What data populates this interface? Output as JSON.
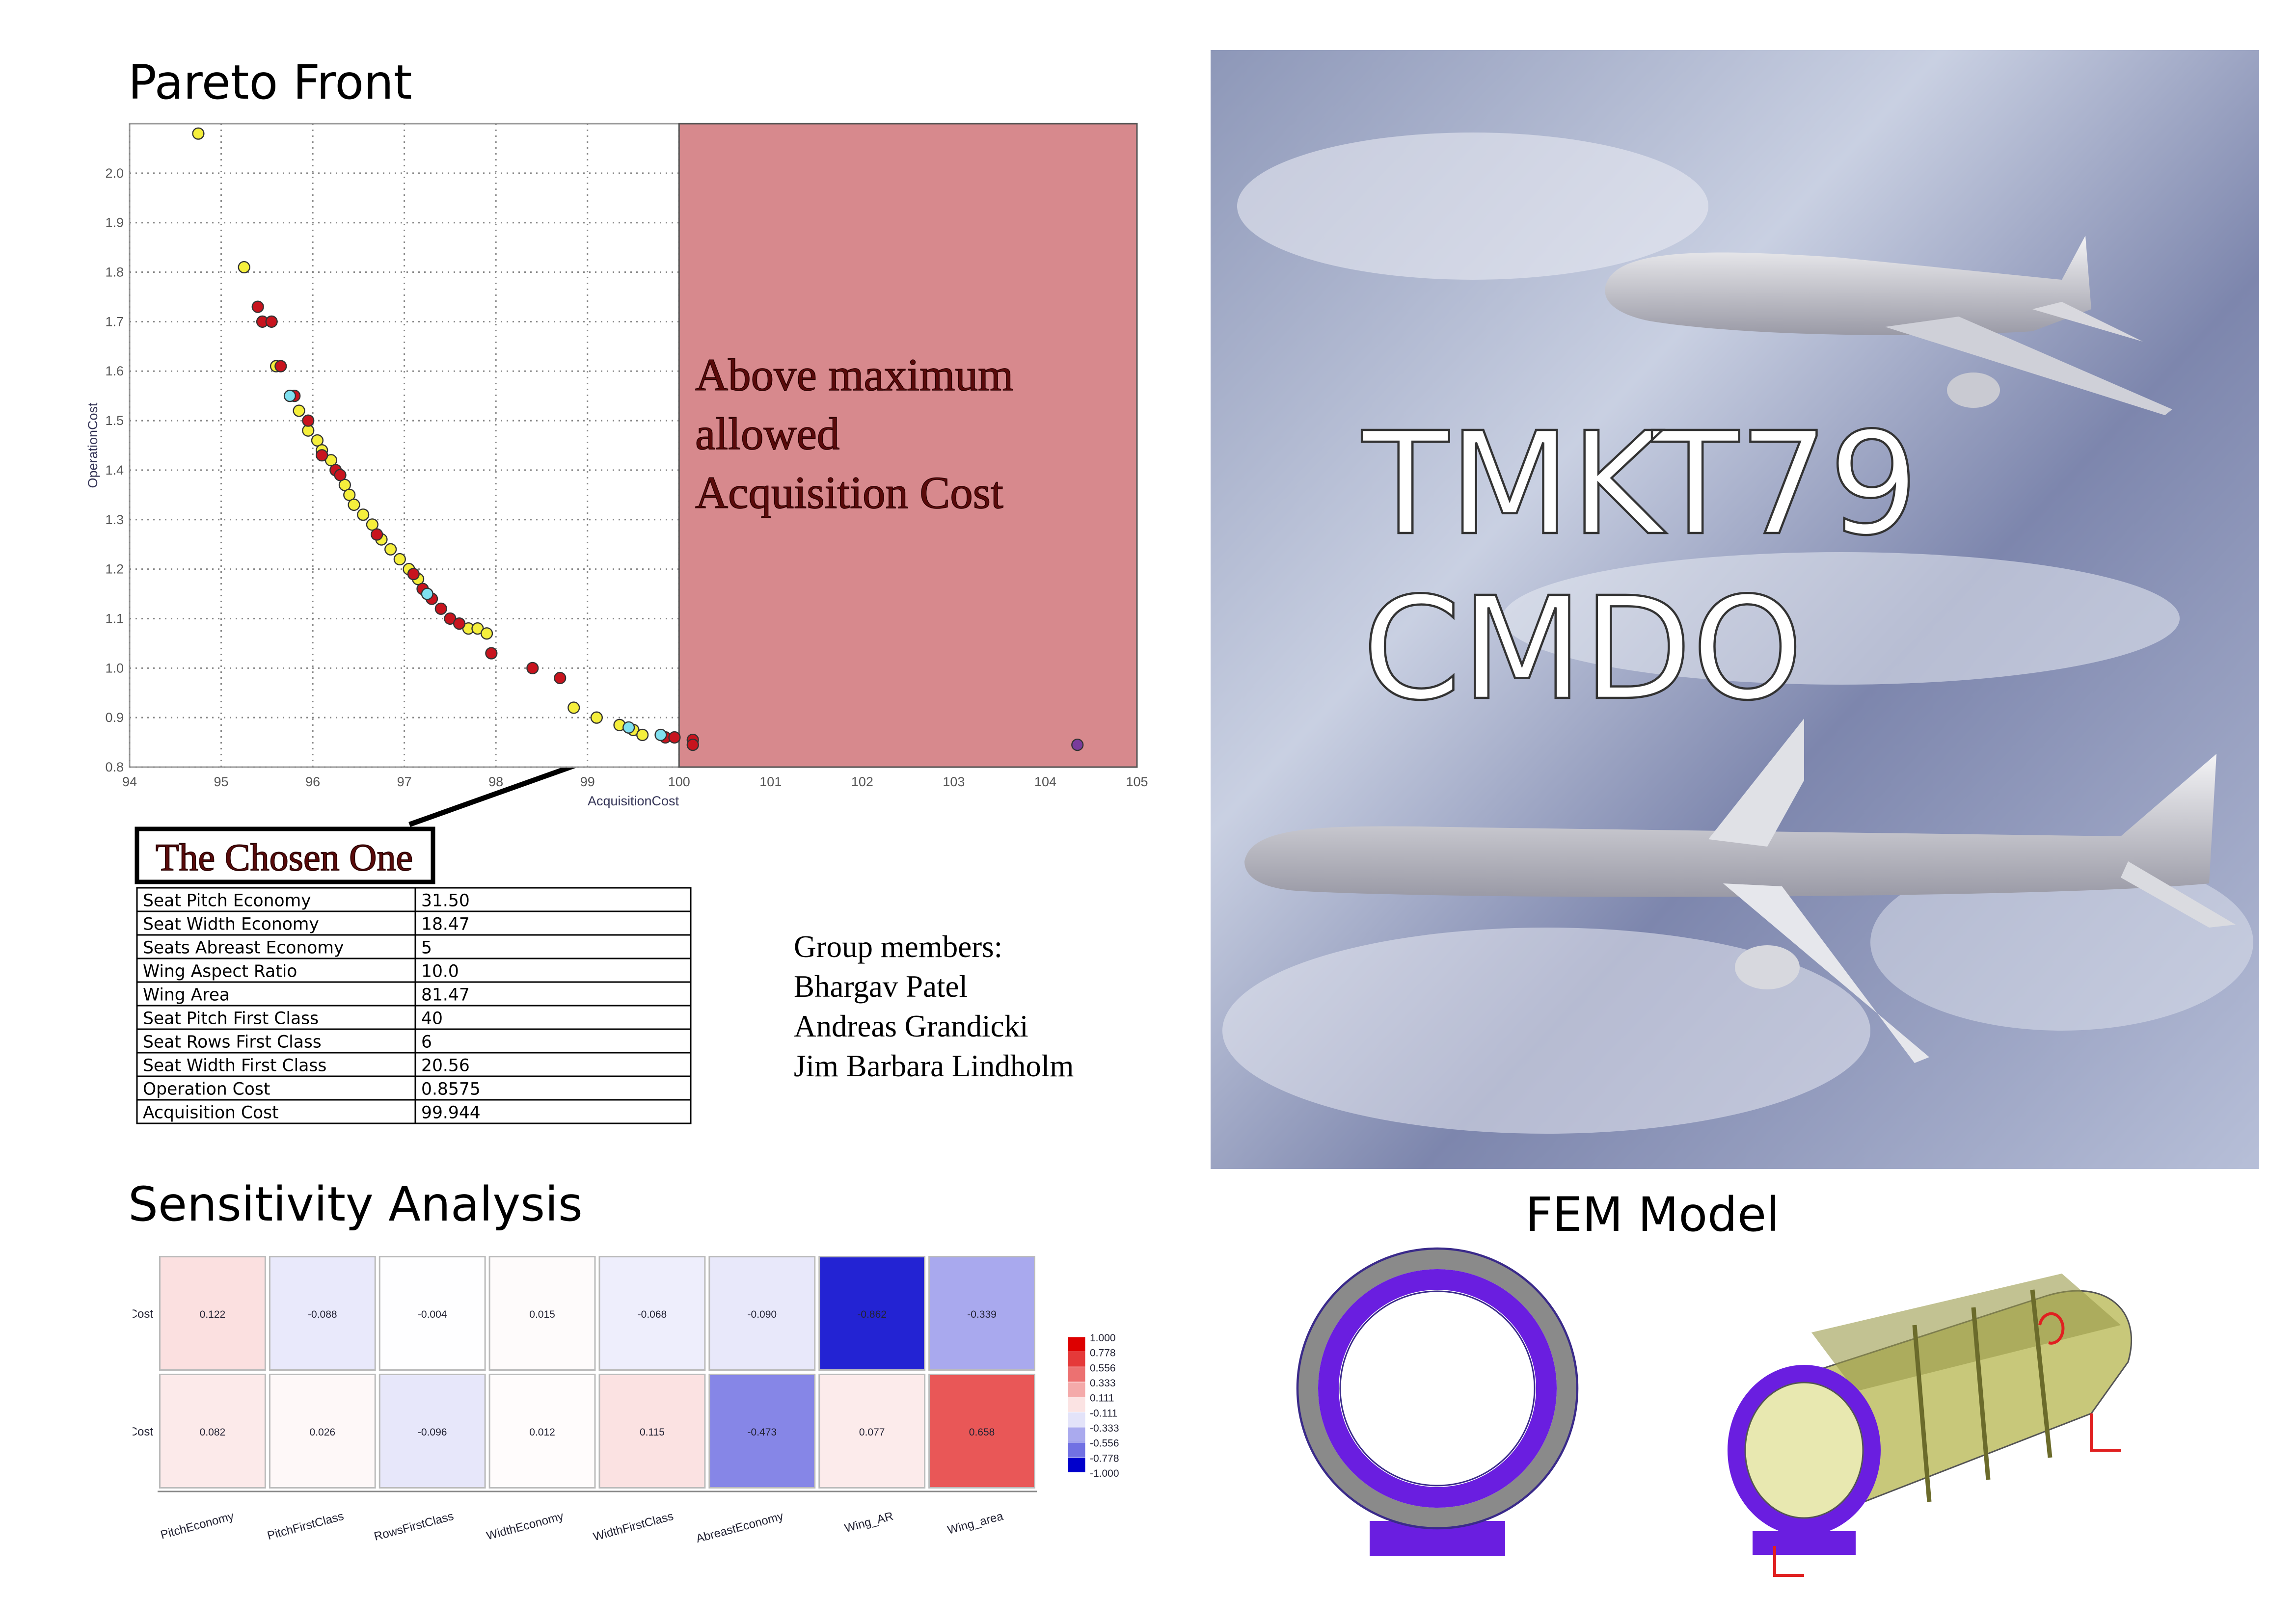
{
  "chart_data": [
    {
      "type": "scatter",
      "title": "Pareto Front",
      "x_label": "AcquisitionCost",
      "y_label": "OperationCost",
      "xlim": [
        94,
        105
      ],
      "ylim": [
        0.8,
        2.1
      ],
      "xticks": [
        94,
        95,
        96,
        97,
        98,
        99,
        100,
        101,
        102,
        103,
        104,
        105
      ],
      "yticks": [
        0.8,
        0.9,
        {
          "value": 1,
          "label": "1.0"
        },
        1.1,
        1.2,
        1.3,
        1.4,
        1.5,
        1.6,
        1.7,
        1.8,
        1.9,
        {
          "value": 2,
          "label": "2.0"
        }
      ],
      "grid": true,
      "shaded_xrange": [
        100,
        105
      ],
      "annotation": [
        "Above maximum",
        "allowed",
        "Acquisition Cost"
      ],
      "series": [
        {
          "color": "#f5ef3c",
          "x": [
            94.75,
            95.25,
            95.6,
            95.85,
            95.95,
            96.05,
            96.1,
            96.2,
            96.35,
            96.4,
            96.45,
            96.55,
            96.65,
            96.75,
            96.85,
            96.95,
            97.05,
            97.15,
            97.7,
            97.8,
            97.9,
            98.85,
            99.1,
            99.35,
            99.5,
            99.6
          ],
          "values": [
            2.08,
            1.81,
            1.61,
            1.52,
            1.48,
            1.46,
            1.44,
            1.42,
            1.37,
            1.35,
            1.33,
            1.31,
            1.29,
            1.26,
            1.24,
            1.22,
            1.2,
            1.18,
            1.08,
            1.08,
            1.07,
            0.92,
            0.9,
            0.885,
            0.875,
            0.865
          ]
        },
        {
          "color": "#c8141e",
          "x": [
            95.4,
            95.45,
            95.55,
            95.65,
            95.8,
            95.95,
            96.1,
            96.25,
            96.3,
            96.7,
            97.1,
            97.2,
            97.3,
            97.4,
            97.5,
            97.6,
            97.95,
            98.4,
            98.7,
            99.85,
            99.95,
            100.15,
            100.15
          ],
          "values": [
            1.73,
            1.7,
            1.7,
            1.61,
            1.55,
            1.5,
            1.43,
            1.4,
            1.39,
            1.27,
            1.19,
            1.16,
            1.14,
            1.12,
            1.1,
            1.09,
            1.03,
            1.0,
            0.98,
            0.86,
            0.86,
            0.855,
            0.845
          ]
        },
        {
          "color": "#7fe0f0",
          "x": [
            95.75,
            97.25,
            99.45,
            99.8
          ],
          "values": [
            1.55,
            1.15,
            0.88,
            0.865
          ]
        },
        {
          "color": "#7a3c9c",
          "x": [
            104.35
          ],
          "values": [
            0.845
          ]
        }
      ]
    },
    {
      "type": "heatmap",
      "title": "Sensitivity Analysis",
      "categories": [
        "PitchEconomy",
        "PitchFirstClass",
        "RowsFirstClass",
        "WidthEconomy",
        "WidthFirstClass",
        "AbreastEconomy",
        "Wing_AR",
        "Wing_area"
      ],
      "series": [
        {
          "name": "operationCost",
          "values": [
            0.122,
            -0.088,
            -0.004,
            0.015,
            -0.068,
            -0.09,
            -0.862,
            -0.339
          ],
          "value_labels": [
            "0.122",
            "-0.088",
            "-0.004",
            "0.015",
            "-0.068",
            "-0.090",
            "-0.862",
            "-0.339"
          ]
        },
        {
          "name": "acquisitionCost",
          "values": [
            0.082,
            0.026,
            -0.096,
            0.012,
            0.115,
            -0.473,
            0.077,
            0.658
          ],
          "value_labels": [
            "0.082",
            "0.026",
            "-0.096",
            "0.012",
            "0.115",
            "-0.473",
            "0.077",
            "0.658"
          ]
        }
      ],
      "colormap": [
        "#0000cc",
        "#ffffff",
        "#dd0000"
      ],
      "clim": [
        -1,
        1
      ],
      "cticks": [
        {
          "value": 1,
          "label": "1.000"
        },
        0.778,
        0.556,
        0.333,
        0.111,
        -0.111,
        -0.333,
        -0.556,
        -0.778,
        {
          "value": -1,
          "label": "-1.000"
        }
      ]
    }
  ],
  "chosen": {
    "title": "The Chosen One",
    "rows": [
      [
        "Seat Pitch Economy",
        "31.50"
      ],
      [
        "Seat Width Economy",
        "18.47"
      ],
      [
        "Seats Abreast Economy",
        "5"
      ],
      [
        "Wing Aspect Ratio",
        "10.0"
      ],
      [
        "Wing Area",
        "81.47"
      ],
      [
        "Seat Pitch First Class",
        "40"
      ],
      [
        "Seat Rows First Class",
        "6"
      ],
      [
        "Seat Width First Class",
        "20.56"
      ],
      [
        "Operation Cost",
        "0.8575"
      ],
      [
        "Acquisition Cost",
        "99.944"
      ]
    ]
  },
  "group": {
    "heading": "Group members:",
    "members": [
      "Bhargav Patel",
      "Andreas Grandicki",
      "Jim Barbara Lindholm"
    ]
  },
  "poster_title": [
    "TMKT79",
    "CMDO"
  ],
  "fem_title": "FEM Model"
}
